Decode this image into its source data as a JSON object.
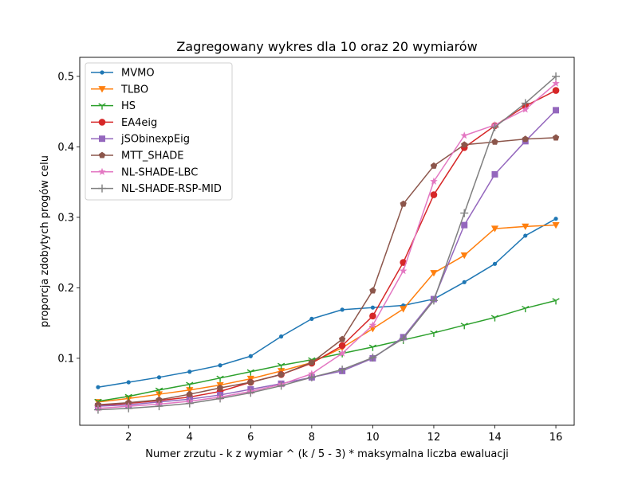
{
  "chart_data": {
    "type": "line",
    "title": "Zagregowany wykres dla 10 oraz 20 wymiarów",
    "xlabel": "Numer zrzutu - k z wymiar ^ (k / 5 - 3) * maksymalna liczba ewaluacji",
    "ylabel": "proporcja zdobytych progów celu",
    "xlim": [
      0.4,
      16.6
    ],
    "ylim": [
      0.005,
      0.527
    ],
    "xticks": [
      2,
      4,
      6,
      8,
      10,
      12,
      14,
      16
    ],
    "yticks": [
      0.1,
      0.2,
      0.3,
      0.4,
      0.5
    ],
    "ytick_labels": [
      "0.1",
      "0.2",
      "0.3",
      "0.4",
      "0.5"
    ],
    "grid": false,
    "legend_position": "top-left",
    "x": [
      1,
      2,
      3,
      4,
      5,
      6,
      7,
      8,
      9,
      10,
      11,
      12,
      13,
      14,
      15,
      16
    ],
    "series": [
      {
        "name": "MVMO",
        "color": "#1f77b4",
        "marker": "point",
        "values": [
          0.059,
          0.066,
          0.073,
          0.081,
          0.09,
          0.103,
          0.131,
          0.156,
          0.169,
          0.172,
          0.175,
          0.184,
          0.208,
          0.234,
          0.274,
          0.298
        ]
      },
      {
        "name": "TLBO",
        "color": "#ff7f0e",
        "marker": "triangle_down",
        "values": [
          0.038,
          0.043,
          0.049,
          0.055,
          0.062,
          0.071,
          0.082,
          0.094,
          0.115,
          0.142,
          0.17,
          0.221,
          0.246,
          0.284,
          0.287,
          0.289
        ]
      },
      {
        "name": "HS",
        "color": "#2ca02c",
        "marker": "tri_down",
        "values": [
          0.039,
          0.046,
          0.055,
          0.063,
          0.072,
          0.081,
          0.09,
          0.098,
          0.107,
          0.116,
          0.126,
          0.136,
          0.147,
          0.158,
          0.171,
          0.182
        ]
      },
      {
        "name": "EA4eig",
        "color": "#d62728",
        "marker": "circle",
        "values": [
          0.033,
          0.036,
          0.04,
          0.045,
          0.053,
          0.066,
          0.077,
          0.093,
          0.118,
          0.16,
          0.236,
          0.332,
          0.399,
          0.43,
          0.458,
          0.48
        ]
      },
      {
        "name": "jSObinexpEig",
        "color": "#9467bd",
        "marker": "square",
        "values": [
          0.032,
          0.034,
          0.038,
          0.042,
          0.048,
          0.056,
          0.064,
          0.073,
          0.082,
          0.1,
          0.13,
          0.184,
          0.289,
          0.361,
          0.408,
          0.452
        ]
      },
      {
        "name": "MTT_SHADE",
        "color": "#8c564b",
        "marker": "pentagon",
        "values": [
          0.034,
          0.037,
          0.041,
          0.049,
          0.058,
          0.066,
          0.077,
          0.094,
          0.127,
          0.196,
          0.319,
          0.373,
          0.403,
          0.407,
          0.411,
          0.413
        ]
      },
      {
        "name": "NL-SHADE-LBC",
        "color": "#e377c2",
        "marker": "star",
        "values": [
          0.029,
          0.032,
          0.035,
          0.039,
          0.045,
          0.053,
          0.063,
          0.078,
          0.107,
          0.147,
          0.224,
          0.351,
          0.416,
          0.431,
          0.453,
          0.49
        ]
      },
      {
        "name": "NL-SHADE-RSP-MID",
        "color": "#7f7f7f",
        "marker": "plus",
        "values": [
          0.027,
          0.029,
          0.032,
          0.036,
          0.043,
          0.051,
          0.061,
          0.073,
          0.084,
          0.101,
          0.128,
          0.182,
          0.306,
          0.428,
          0.462,
          0.5
        ]
      }
    ]
  }
}
